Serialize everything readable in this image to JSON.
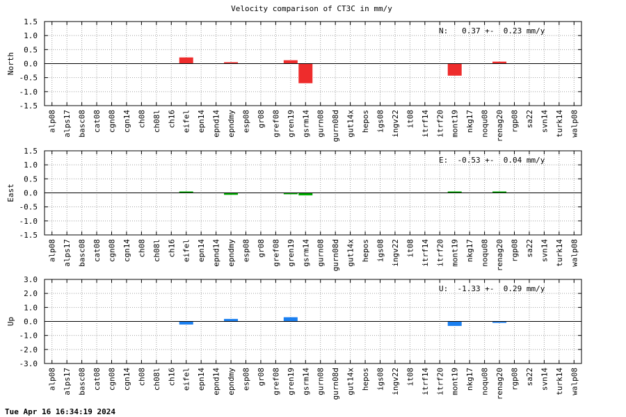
{
  "title": "Velocity comparison of CT3C in mm/y",
  "footer": "Tue Apr 16 16:34:19 2024",
  "chart_data": {
    "type": "bar",
    "title": "Velocity comparison of CT3C in mm/y",
    "categories": [
      "alp08",
      "alps17",
      "basc08",
      "cat08",
      "cgn08",
      "cgn14",
      "ch08",
      "ch08l",
      "ch16",
      "eifel",
      "epn14",
      "epnd14",
      "epndmy",
      "esp08",
      "gr08",
      "gref08",
      "gren19",
      "gsrm14",
      "gurn08",
      "gurn08d",
      "gut14x",
      "hepos",
      "igs08",
      "ingv22",
      "it08",
      "itrf14",
      "itrf20",
      "mont19",
      "nkg17",
      "noqu08",
      "renag20",
      "rgp08",
      "sa22",
      "svn14",
      "turk14",
      "walp08"
    ],
    "panels": [
      {
        "ylabel": "North",
        "ylim": [
          -1.5,
          1.5
        ],
        "yticks": [
          "1.5",
          "1.0",
          "0.5",
          "0.0",
          "-0.5",
          "-1.0",
          "-1.5"
        ],
        "ytick_values": [
          1.5,
          1.0,
          0.5,
          0.0,
          -0.5,
          -1.0,
          -1.5
        ],
        "annotation": "N:   0.37 +-  0.23 mm/y",
        "color": "#ee2c2c",
        "values": [
          0,
          0,
          0,
          0,
          0,
          0,
          0,
          0,
          0,
          0.22,
          0,
          0,
          0.04,
          0,
          0,
          0,
          0.12,
          -0.7,
          0,
          0,
          0,
          0,
          0,
          0,
          0,
          0,
          0,
          -0.43,
          0,
          0,
          0.07,
          0,
          0,
          0,
          0,
          0
        ]
      },
      {
        "ylabel": "East",
        "ylim": [
          -1.5,
          1.5
        ],
        "yticks": [
          "1.5",
          "1.0",
          "0.5",
          "0.0",
          "-0.5",
          "-1.0",
          "-1.5"
        ],
        "ytick_values": [
          1.5,
          1.0,
          0.5,
          0.0,
          -0.5,
          -1.0,
          -1.5
        ],
        "annotation": "E:  -0.53 +-  0.04 mm/y",
        "color": "#00aa00",
        "values": [
          0,
          0,
          0,
          0,
          0,
          0,
          0,
          0,
          0,
          0.02,
          0,
          0,
          -0.07,
          0,
          0,
          0,
          -0.02,
          -0.09,
          0,
          0,
          0,
          0,
          0,
          0,
          0,
          0,
          0,
          0.02,
          0,
          0,
          0.02,
          0,
          0,
          0,
          0,
          0
        ]
      },
      {
        "ylabel": "Up",
        "ylim": [
          -3.0,
          3.0
        ],
        "yticks": [
          "3.0",
          "2.0",
          "1.0",
          "0.0",
          "-1.0",
          "-2.0",
          "-3.0"
        ],
        "ytick_values": [
          3.0,
          2.0,
          1.0,
          0.0,
          -1.0,
          -2.0,
          -3.0
        ],
        "annotation": "U:  -1.33 +-  0.29 mm/y",
        "color": "#1a7ff0",
        "values": [
          0,
          0,
          0,
          0,
          0,
          0,
          0,
          0,
          0,
          -0.22,
          0,
          0,
          0.18,
          0,
          0,
          0,
          0.3,
          0,
          0,
          0,
          0,
          0,
          0,
          0,
          0,
          0,
          0,
          -0.32,
          0,
          0,
          -0.1,
          0,
          0,
          0,
          0,
          0
        ]
      }
    ],
    "grid": true
  }
}
